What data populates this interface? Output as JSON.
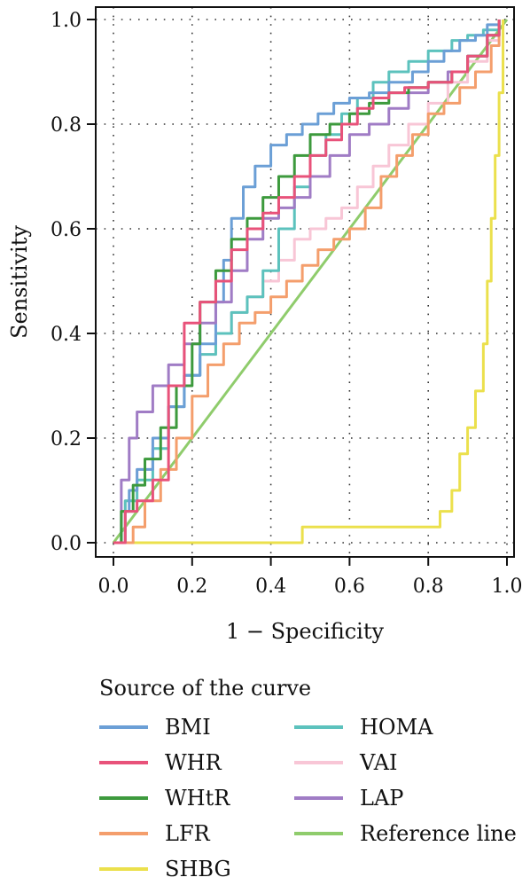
{
  "chart_data": {
    "type": "line",
    "xlabel": "1 − Specificity",
    "ylabel": "Sensitivity",
    "xlim": [
      0,
      1
    ],
    "ylim": [
      0,
      1
    ],
    "x_ticks": [
      "0.0",
      "0.2",
      "0.4",
      "0.6",
      "0.8",
      "1.0"
    ],
    "y_ticks": [
      "0.0",
      "0.2",
      "0.4",
      "0.6",
      "0.8",
      "1.0"
    ],
    "grid": true,
    "grid_style": "dotted",
    "legend_title": "Source of the curve",
    "legend_position": "bottom",
    "series": [
      {
        "name": "BMI",
        "color": "#6b9fd6",
        "x": [
          0,
          0.02,
          0.04,
          0.06,
          0.1,
          0.14,
          0.18,
          0.22,
          0.26,
          0.28,
          0.3,
          0.33,
          0.36,
          0.4,
          0.44,
          0.48,
          0.52,
          0.56,
          0.6,
          0.65,
          0.7,
          0.76,
          0.8,
          0.84,
          0.88,
          0.92,
          0.95,
          0.98
        ],
        "y": [
          0,
          0.06,
          0.1,
          0.14,
          0.2,
          0.26,
          0.32,
          0.38,
          0.46,
          0.54,
          0.62,
          0.68,
          0.72,
          0.76,
          0.78,
          0.8,
          0.82,
          0.84,
          0.85,
          0.86,
          0.88,
          0.9,
          0.92,
          0.94,
          0.96,
          0.97,
          0.99,
          1.0
        ]
      },
      {
        "name": "WHR",
        "color": "#e8527a",
        "x": [
          0,
          0.03,
          0.06,
          0.1,
          0.14,
          0.18,
          0.22,
          0.26,
          0.3,
          0.34,
          0.38,
          0.42,
          0.46,
          0.5,
          0.54,
          0.58,
          0.62,
          0.66,
          0.7,
          0.74,
          0.8,
          0.86,
          0.9,
          0.95,
          0.98
        ],
        "y": [
          0,
          0.06,
          0.08,
          0.12,
          0.3,
          0.42,
          0.46,
          0.5,
          0.56,
          0.6,
          0.63,
          0.66,
          0.7,
          0.74,
          0.77,
          0.8,
          0.83,
          0.85,
          0.86,
          0.87,
          0.88,
          0.9,
          0.93,
          0.97,
          1.0
        ]
      },
      {
        "name": "WHtR",
        "color": "#3d9a3d",
        "x": [
          0,
          0.02,
          0.05,
          0.08,
          0.12,
          0.16,
          0.2,
          0.22,
          0.26,
          0.3,
          0.34,
          0.38,
          0.42,
          0.46,
          0.5,
          0.55,
          0.6,
          0.65,
          0.7,
          0.75,
          0.8,
          0.86,
          0.9,
          0.95,
          0.98
        ],
        "y": [
          0,
          0.06,
          0.11,
          0.16,
          0.22,
          0.3,
          0.38,
          0.46,
          0.52,
          0.58,
          0.62,
          0.66,
          0.7,
          0.74,
          0.78,
          0.8,
          0.82,
          0.84,
          0.86,
          0.87,
          0.88,
          0.9,
          0.93,
          0.97,
          1.0
        ]
      },
      {
        "name": "LFR",
        "color": "#f49e6c",
        "x": [
          0,
          0.03,
          0.05,
          0.08,
          0.12,
          0.16,
          0.2,
          0.24,
          0.28,
          0.32,
          0.36,
          0.4,
          0.44,
          0.48,
          0.52,
          0.56,
          0.6,
          0.64,
          0.68,
          0.72,
          0.76,
          0.8,
          0.84,
          0.88,
          0.92,
          0.96,
          0.98
        ],
        "y": [
          0,
          0.0,
          0.03,
          0.08,
          0.14,
          0.2,
          0.28,
          0.34,
          0.38,
          0.42,
          0.44,
          0.47,
          0.5,
          0.53,
          0.56,
          0.58,
          0.6,
          0.64,
          0.7,
          0.74,
          0.78,
          0.82,
          0.84,
          0.87,
          0.9,
          0.95,
          1.0
        ]
      },
      {
        "name": "SHBG",
        "color": "#ebe04c",
        "x": [
          0,
          0.1,
          0.2,
          0.3,
          0.4,
          0.48,
          0.55,
          0.65,
          0.75,
          0.81,
          0.83,
          0.86,
          0.88,
          0.9,
          0.92,
          0.94,
          0.95,
          0.96,
          0.97,
          0.98,
          0.99
        ],
        "y": [
          0,
          0,
          0,
          0,
          0,
          0.03,
          0.03,
          0.03,
          0.03,
          0.03,
          0.06,
          0.1,
          0.17,
          0.22,
          0.29,
          0.38,
          0.5,
          0.62,
          0.74,
          0.86,
          1.0
        ]
      },
      {
        "name": "HOMA",
        "color": "#5cc2bd",
        "x": [
          0,
          0.03,
          0.06,
          0.1,
          0.14,
          0.18,
          0.22,
          0.26,
          0.3,
          0.34,
          0.38,
          0.42,
          0.46,
          0.5,
          0.54,
          0.58,
          0.62,
          0.66,
          0.7,
          0.75,
          0.8,
          0.86,
          0.9,
          0.94,
          0.98
        ],
        "y": [
          0,
          0.08,
          0.12,
          0.18,
          0.26,
          0.32,
          0.36,
          0.4,
          0.44,
          0.47,
          0.52,
          0.6,
          0.68,
          0.74,
          0.78,
          0.82,
          0.85,
          0.88,
          0.9,
          0.92,
          0.94,
          0.96,
          0.97,
          0.98,
          1.0
        ]
      },
      {
        "name": "VAI",
        "color": "#f8c6d6",
        "x": [
          0,
          0.03,
          0.06,
          0.1,
          0.14,
          0.18,
          0.22,
          0.26,
          0.3,
          0.34,
          0.38,
          0.42,
          0.46,
          0.5,
          0.54,
          0.58,
          0.62,
          0.66,
          0.7,
          0.75,
          0.8,
          0.85,
          0.9,
          0.95,
          0.98
        ],
        "y": [
          0,
          0.08,
          0.14,
          0.2,
          0.26,
          0.32,
          0.36,
          0.4,
          0.44,
          0.47,
          0.5,
          0.54,
          0.58,
          0.6,
          0.62,
          0.64,
          0.68,
          0.72,
          0.76,
          0.8,
          0.84,
          0.88,
          0.92,
          0.96,
          1.0
        ]
      },
      {
        "name": "LAP",
        "color": "#a07cc5",
        "x": [
          0,
          0.02,
          0.04,
          0.06,
          0.1,
          0.14,
          0.18,
          0.22,
          0.26,
          0.3,
          0.34,
          0.38,
          0.42,
          0.46,
          0.5,
          0.55,
          0.6,
          0.65,
          0.7,
          0.75,
          0.8,
          0.85,
          0.9,
          0.95,
          0.98
        ],
        "y": [
          0,
          0.12,
          0.2,
          0.25,
          0.3,
          0.34,
          0.38,
          0.42,
          0.46,
          0.52,
          0.58,
          0.62,
          0.64,
          0.66,
          0.7,
          0.74,
          0.78,
          0.8,
          0.83,
          0.86,
          0.88,
          0.9,
          0.93,
          0.97,
          1.0
        ]
      },
      {
        "name": "Reference line",
        "color": "#8fcc6c",
        "x": [
          0,
          1
        ],
        "y": [
          0,
          1
        ]
      }
    ]
  }
}
